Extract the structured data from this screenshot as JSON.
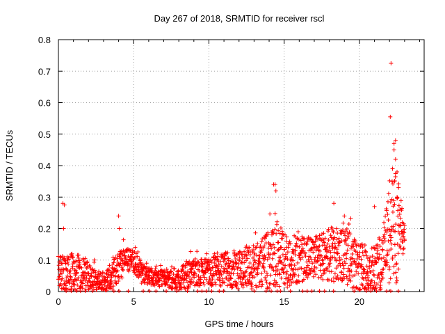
{
  "chart_data": {
    "type": "scatter",
    "title": "Day 267 of 2018, SRMTID for receiver rscl",
    "xlabel": "GPS time / hours",
    "ylabel": "SRMTID / TECUs",
    "xlim": [
      0,
      24.3
    ],
    "ylim": [
      0,
      0.8
    ],
    "xticks": [
      0,
      5,
      10,
      15,
      20
    ],
    "yticks": [
      0,
      0.1,
      0.2,
      0.3,
      0.4,
      0.5,
      0.6,
      0.7,
      0.8
    ],
    "grid": true,
    "legend": "none",
    "marker": "+",
    "color": "#ff0000",
    "series": [
      {
        "name": "SRMTID",
        "description": "approximate envelope of the dense point cloud (hour, typical value, upper spread)",
        "envelope": [
          [
            0.0,
            0.06,
            0.12
          ],
          [
            0.3,
            0.07,
            0.14
          ],
          [
            0.5,
            0.05,
            0.12
          ],
          [
            1.0,
            0.06,
            0.13
          ],
          [
            1.5,
            0.06,
            0.12
          ],
          [
            2.0,
            0.05,
            0.1
          ],
          [
            2.5,
            0.03,
            0.07
          ],
          [
            3.0,
            0.03,
            0.07
          ],
          [
            3.5,
            0.04,
            0.08
          ],
          [
            4.0,
            0.08,
            0.14
          ],
          [
            4.5,
            0.1,
            0.14
          ],
          [
            5.0,
            0.1,
            0.14
          ],
          [
            5.5,
            0.06,
            0.1
          ],
          [
            6.0,
            0.05,
            0.08
          ],
          [
            7.0,
            0.04,
            0.07
          ],
          [
            8.0,
            0.04,
            0.08
          ],
          [
            9.0,
            0.06,
            0.11
          ],
          [
            10.0,
            0.06,
            0.11
          ],
          [
            11.0,
            0.07,
            0.13
          ],
          [
            12.0,
            0.07,
            0.14
          ],
          [
            13.0,
            0.08,
            0.16
          ],
          [
            14.0,
            0.1,
            0.2
          ],
          [
            14.5,
            0.12,
            0.24
          ],
          [
            15.0,
            0.1,
            0.2
          ],
          [
            16.0,
            0.1,
            0.18
          ],
          [
            17.0,
            0.11,
            0.18
          ],
          [
            18.0,
            0.12,
            0.22
          ],
          [
            19.0,
            0.12,
            0.22
          ],
          [
            20.0,
            0.07,
            0.16
          ],
          [
            21.0,
            0.06,
            0.16
          ],
          [
            21.5,
            0.1,
            0.2
          ],
          [
            22.0,
            0.18,
            0.35
          ],
          [
            22.5,
            0.2,
            0.4
          ],
          [
            23.0,
            0.18,
            0.22
          ]
        ],
        "outliers": [
          [
            0.3,
            0.28
          ],
          [
            0.4,
            0.275
          ],
          [
            0.35,
            0.2
          ],
          [
            4.0,
            0.24
          ],
          [
            4.05,
            0.2
          ],
          [
            14.3,
            0.34
          ],
          [
            14.4,
            0.34
          ],
          [
            14.45,
            0.32
          ],
          [
            18.3,
            0.28
          ],
          [
            19.0,
            0.24
          ],
          [
            21.0,
            0.27
          ],
          [
            22.1,
            0.725
          ],
          [
            22.05,
            0.555
          ],
          [
            22.3,
            0.47
          ],
          [
            22.4,
            0.48
          ],
          [
            22.3,
            0.45
          ],
          [
            22.4,
            0.42
          ],
          [
            22.2,
            0.39
          ],
          [
            22.5,
            0.38
          ],
          [
            22.6,
            0.33
          ],
          [
            22.5,
            0.3
          ],
          [
            23.0,
            0.21
          ],
          [
            22.9,
            0.19
          ]
        ]
      }
    ]
  }
}
